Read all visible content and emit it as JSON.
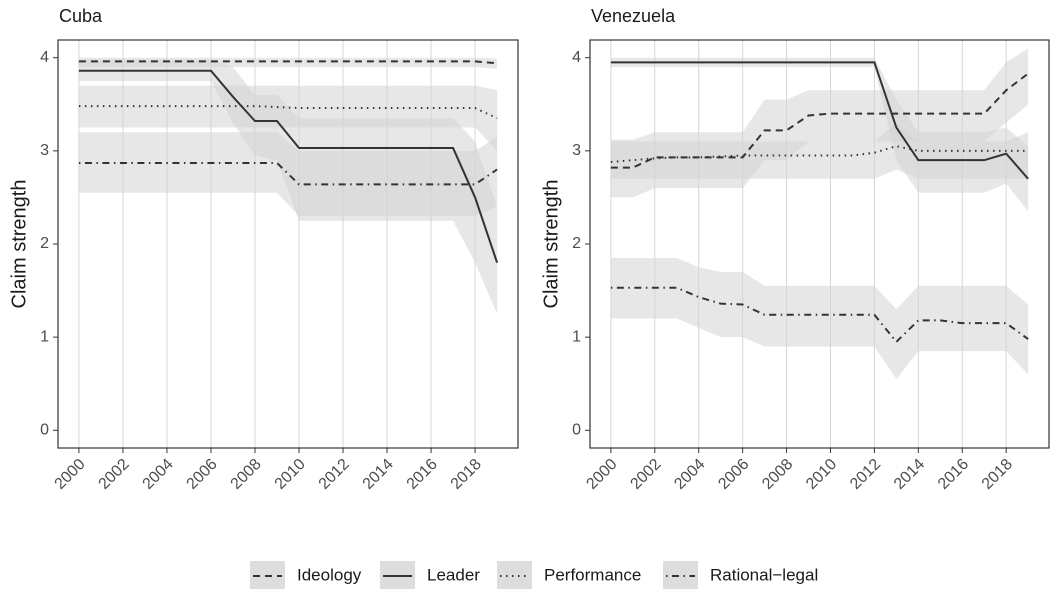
{
  "chart_data": [
    {
      "type": "line",
      "title": "Cuba",
      "y_label": "Claim strength",
      "x": [
        2000,
        2001,
        2002,
        2003,
        2004,
        2005,
        2006,
        2007,
        2008,
        2009,
        2010,
        2011,
        2012,
        2013,
        2014,
        2015,
        2016,
        2017,
        2018,
        2019
      ],
      "xlim": [
        1999.05,
        2019.95
      ],
      "xticks": [
        2000,
        2002,
        2004,
        2006,
        2008,
        2010,
        2012,
        2014,
        2016,
        2018
      ],
      "ylim": [
        -0.19,
        4.19
      ],
      "yticks": [
        0,
        1,
        2,
        3,
        4
      ],
      "grid": "x",
      "series": [
        {
          "name": "Ideology",
          "color": "#333333",
          "band_color": "#d4d4d4",
          "linetype": "dashed",
          "values": [
            3.96,
            3.96,
            3.96,
            3.96,
            3.96,
            3.96,
            3.96,
            3.96,
            3.96,
            3.96,
            3.96,
            3.96,
            3.96,
            3.96,
            3.96,
            3.96,
            3.96,
            3.96,
            3.96,
            3.94
          ],
          "lower": [
            3.9,
            3.9,
            3.9,
            3.9,
            3.9,
            3.9,
            3.9,
            3.9,
            3.9,
            3.9,
            3.9,
            3.9,
            3.9,
            3.9,
            3.9,
            3.9,
            3.9,
            3.9,
            3.9,
            3.88
          ],
          "upper": [
            4.0,
            4.0,
            4.0,
            4.0,
            4.0,
            4.0,
            4.0,
            4.0,
            4.0,
            4.0,
            4.0,
            4.0,
            4.0,
            4.0,
            4.0,
            4.0,
            4.0,
            4.0,
            4.0,
            3.99
          ]
        },
        {
          "name": "Leader",
          "color": "#333333",
          "band_color": "#d4d4d4",
          "linetype": "solid",
          "values": [
            3.86,
            3.86,
            3.86,
            3.86,
            3.86,
            3.86,
            3.86,
            3.58,
            3.32,
            3.32,
            3.03,
            3.03,
            3.03,
            3.03,
            3.03,
            3.03,
            3.03,
            3.03,
            2.5,
            1.8
          ],
          "lower": [
            3.75,
            3.75,
            3.75,
            3.75,
            3.75,
            3.75,
            3.75,
            3.3,
            2.95,
            2.9,
            2.25,
            2.25,
            2.25,
            2.25,
            2.25,
            2.25,
            2.25,
            2.25,
            1.8,
            1.25
          ],
          "upper": [
            3.98,
            3.98,
            3.98,
            3.98,
            3.98,
            3.98,
            3.98,
            3.9,
            3.6,
            3.6,
            3.35,
            3.35,
            3.35,
            3.35,
            3.35,
            3.35,
            3.35,
            3.35,
            3.1,
            2.4
          ]
        },
        {
          "name": "Performance",
          "color": "#333333",
          "band_color": "#d4d4d4",
          "linetype": "dotted",
          "values": [
            3.48,
            3.48,
            3.48,
            3.48,
            3.48,
            3.48,
            3.48,
            3.48,
            3.48,
            3.47,
            3.46,
            3.46,
            3.46,
            3.46,
            3.46,
            3.46,
            3.46,
            3.46,
            3.46,
            3.35
          ],
          "lower": [
            3.25,
            3.25,
            3.25,
            3.25,
            3.25,
            3.25,
            3.25,
            3.25,
            3.25,
            3.25,
            3.25,
            3.25,
            3.25,
            3.25,
            3.25,
            3.25,
            3.25,
            3.25,
            3.25,
            3.0
          ],
          "upper": [
            3.7,
            3.7,
            3.7,
            3.7,
            3.7,
            3.7,
            3.7,
            3.7,
            3.7,
            3.7,
            3.7,
            3.7,
            3.7,
            3.7,
            3.7,
            3.7,
            3.7,
            3.7,
            3.7,
            3.65
          ]
        },
        {
          "name": "Rational−legal",
          "color": "#333333",
          "band_color": "#d4d4d4",
          "linetype": "dotdash",
          "values": [
            2.87,
            2.87,
            2.87,
            2.87,
            2.87,
            2.87,
            2.87,
            2.87,
            2.87,
            2.87,
            2.64,
            2.64,
            2.64,
            2.64,
            2.64,
            2.64,
            2.64,
            2.64,
            2.64,
            2.8
          ],
          "lower": [
            2.55,
            2.55,
            2.55,
            2.55,
            2.55,
            2.55,
            2.55,
            2.55,
            2.55,
            2.55,
            2.3,
            2.3,
            2.3,
            2.3,
            2.3,
            2.3,
            2.3,
            2.3,
            2.3,
            2.4
          ],
          "upper": [
            3.2,
            3.2,
            3.2,
            3.2,
            3.2,
            3.2,
            3.2,
            3.2,
            3.2,
            3.2,
            3.0,
            3.0,
            3.0,
            3.0,
            3.0,
            3.0,
            3.0,
            3.0,
            3.0,
            3.15
          ]
        }
      ]
    },
    {
      "type": "line",
      "title": "Venezuela",
      "y_label": "Claim strength",
      "x": [
        2000,
        2001,
        2002,
        2003,
        2004,
        2005,
        2006,
        2007,
        2008,
        2009,
        2010,
        2011,
        2012,
        2013,
        2014,
        2015,
        2016,
        2017,
        2018,
        2019
      ],
      "xlim": [
        1999.05,
        2019.95
      ],
      "xticks": [
        2000,
        2002,
        2004,
        2006,
        2008,
        2010,
        2012,
        2014,
        2016,
        2018
      ],
      "ylim": [
        -0.19,
        4.19
      ],
      "yticks": [
        0,
        1,
        2,
        3,
        4
      ],
      "grid": "x",
      "series": [
        {
          "name": "Ideology",
          "color": "#333333",
          "band_color": "#d4d4d4",
          "linetype": "dashed",
          "values": [
            2.82,
            2.82,
            2.93,
            2.93,
            2.93,
            2.93,
            2.93,
            3.22,
            3.22,
            3.38,
            3.4,
            3.4,
            3.4,
            3.4,
            3.4,
            3.4,
            3.4,
            3.4,
            3.65,
            3.83
          ],
          "lower": [
            2.5,
            2.5,
            2.6,
            2.6,
            2.6,
            2.6,
            2.6,
            2.9,
            2.9,
            3.1,
            3.1,
            3.1,
            3.1,
            3.1,
            3.1,
            3.1,
            3.1,
            3.1,
            3.3,
            3.5
          ],
          "upper": [
            3.12,
            3.12,
            3.2,
            3.2,
            3.2,
            3.2,
            3.2,
            3.55,
            3.55,
            3.65,
            3.65,
            3.65,
            3.65,
            3.65,
            3.65,
            3.65,
            3.65,
            3.65,
            3.95,
            4.1
          ]
        },
        {
          "name": "Leader",
          "color": "#333333",
          "band_color": "#d4d4d4",
          "linetype": "solid",
          "values": [
            3.95,
            3.95,
            3.95,
            3.95,
            3.95,
            3.95,
            3.95,
            3.95,
            3.95,
            3.95,
            3.95,
            3.95,
            3.95,
            3.25,
            2.9,
            2.9,
            2.9,
            2.9,
            2.97,
            2.7
          ],
          "lower": [
            3.9,
            3.9,
            3.9,
            3.9,
            3.9,
            3.9,
            3.9,
            3.9,
            3.9,
            3.9,
            3.9,
            3.9,
            3.9,
            2.9,
            2.55,
            2.55,
            2.55,
            2.55,
            2.65,
            2.35
          ],
          "upper": [
            4.0,
            4.0,
            4.0,
            4.0,
            4.0,
            4.0,
            4.0,
            4.0,
            4.0,
            4.0,
            4.0,
            4.0,
            4.0,
            3.55,
            3.2,
            3.2,
            3.2,
            3.2,
            3.25,
            3.05
          ]
        },
        {
          "name": "Performance",
          "color": "#333333",
          "band_color": "#d4d4d4",
          "linetype": "dotted",
          "values": [
            2.88,
            2.9,
            2.92,
            2.93,
            2.93,
            2.94,
            2.95,
            2.95,
            2.95,
            2.95,
            2.95,
            2.95,
            2.98,
            3.05,
            3.0,
            3.0,
            3.0,
            3.0,
            3.0,
            3.0
          ],
          "lower": [
            2.7,
            2.7,
            2.7,
            2.7,
            2.7,
            2.7,
            2.7,
            2.7,
            2.7,
            2.7,
            2.7,
            2.7,
            2.7,
            2.8,
            2.7,
            2.7,
            2.7,
            2.7,
            2.7,
            2.7
          ],
          "upper": [
            3.1,
            3.1,
            3.1,
            3.1,
            3.1,
            3.1,
            3.1,
            3.1,
            3.1,
            3.1,
            3.1,
            3.1,
            3.1,
            3.3,
            3.1,
            3.1,
            3.1,
            3.1,
            3.1,
            3.2
          ]
        },
        {
          "name": "Rational−legal",
          "color": "#333333",
          "band_color": "#d4d4d4",
          "linetype": "dotdash",
          "values": [
            1.53,
            1.53,
            1.53,
            1.53,
            1.43,
            1.36,
            1.35,
            1.24,
            1.24,
            1.24,
            1.24,
            1.24,
            1.24,
            0.95,
            1.18,
            1.18,
            1.15,
            1.15,
            1.15,
            0.98
          ],
          "lower": [
            1.2,
            1.2,
            1.2,
            1.2,
            1.1,
            1.0,
            1.0,
            0.9,
            0.9,
            0.9,
            0.9,
            0.9,
            0.9,
            0.55,
            0.85,
            0.85,
            0.85,
            0.85,
            0.85,
            0.6
          ],
          "upper": [
            1.85,
            1.85,
            1.85,
            1.85,
            1.75,
            1.7,
            1.7,
            1.55,
            1.55,
            1.55,
            1.55,
            1.55,
            1.55,
            1.3,
            1.55,
            1.55,
            1.55,
            1.55,
            1.55,
            1.35
          ]
        }
      ]
    }
  ]
}
